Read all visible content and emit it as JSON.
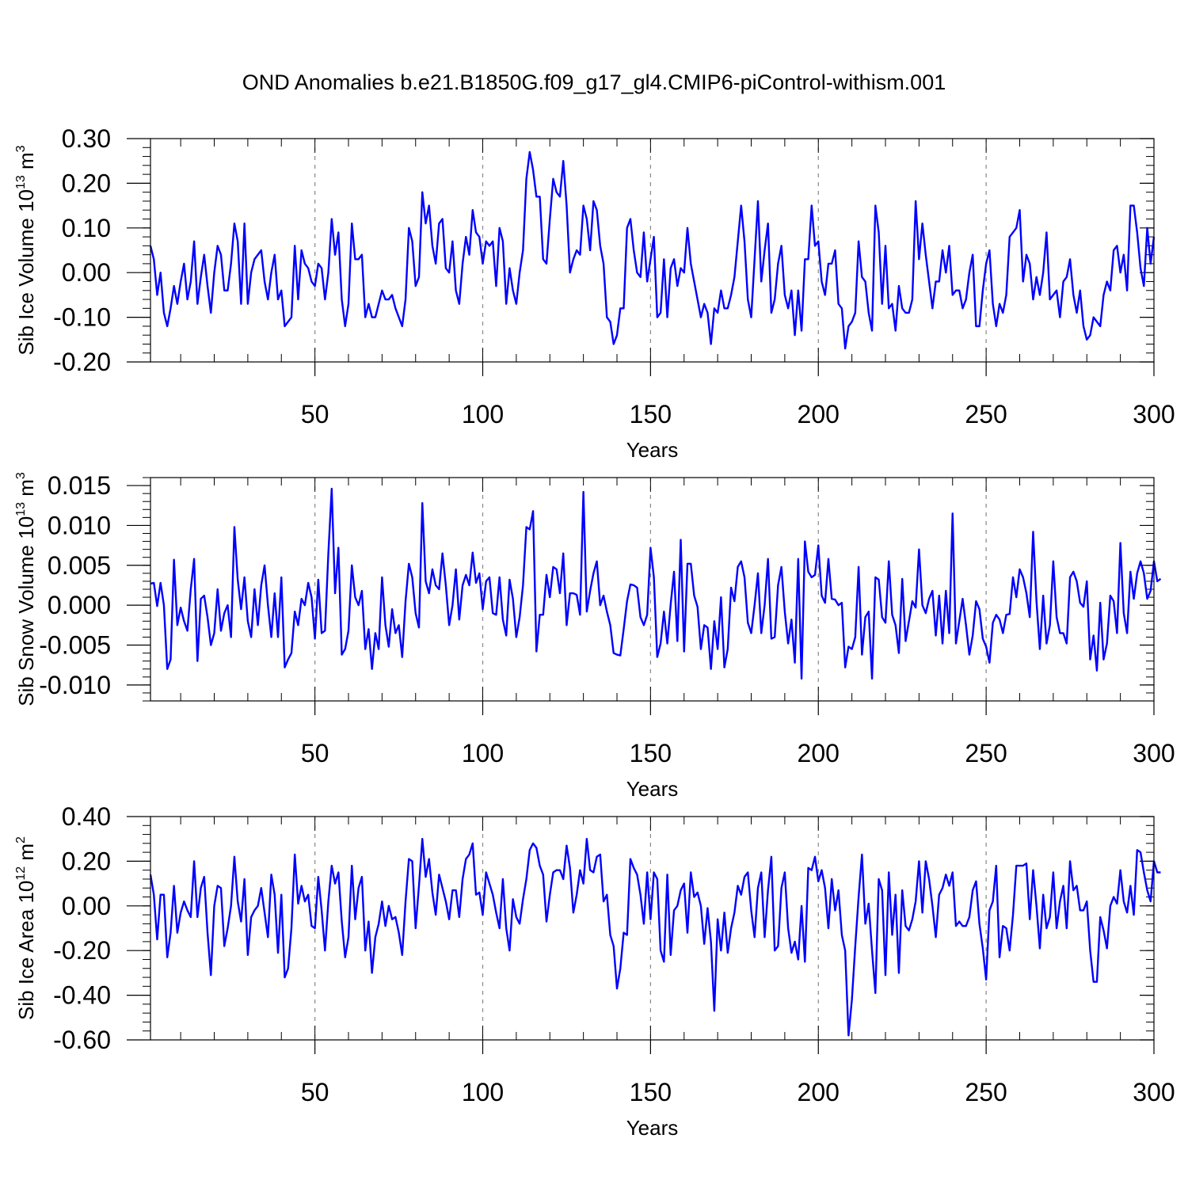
{
  "figure": {
    "title": "OND Anomalies b.e21.B1850G.f09_g17_gl4.CMIP6-piControl-withism.001",
    "line_color": "#0000ff",
    "grid_color": "#888888"
  },
  "chart_data": [
    {
      "type": "line",
      "ylabel_main": "Sib Ice Volume 10",
      "ylabel_sup": "13",
      "ylabel_unit": " m",
      "ylabel_unit_sup": "3",
      "xlabel": "Years",
      "xlim": [
        1,
        300
      ],
      "ylim": [
        -0.2,
        0.3
      ],
      "yticks": [
        -0.2,
        -0.1,
        0.0,
        0.1,
        0.2,
        0.3
      ],
      "ytick_labels": [
        "-0.20",
        "-0.10",
        "0.00",
        "0.10",
        "0.20",
        "0.30"
      ],
      "yminor_step": 0.02,
      "xticks": [
        50,
        100,
        150,
        200,
        250,
        300
      ],
      "xtick_labels": [
        "50",
        "100",
        "150",
        "200",
        "250",
        "300"
      ],
      "grid": true,
      "x_start": 1,
      "values": [
        0.06,
        0.03,
        -0.05,
        0.0,
        -0.09,
        -0.12,
        -0.08,
        -0.03,
        -0.07,
        -0.02,
        0.02,
        -0.06,
        -0.02,
        0.07,
        -0.07,
        -0.01,
        0.04,
        -0.03,
        -0.09,
        0.0,
        0.06,
        0.04,
        -0.04,
        -0.04,
        0.02,
        0.11,
        0.07,
        -0.07,
        0.11,
        -0.07,
        0.0,
        0.03,
        0.04,
        0.05,
        -0.02,
        -0.06,
        0.0,
        0.04,
        -0.06,
        -0.04,
        -0.12,
        -0.11,
        -0.1,
        0.06,
        -0.06,
        0.05,
        0.02,
        0.01,
        -0.02,
        -0.03,
        0.02,
        0.01,
        -0.06,
        0.0,
        0.12,
        0.04,
        0.09,
        -0.06,
        -0.12,
        -0.07,
        0.11,
        0.03,
        0.03,
        0.04,
        -0.1,
        -0.07,
        -0.1,
        -0.1,
        -0.07,
        -0.04,
        -0.06,
        -0.06,
        -0.05,
        -0.08,
        -0.1,
        -0.12,
        -0.06,
        0.1,
        0.07,
        -0.03,
        -0.01,
        0.18,
        0.11,
        0.15,
        0.06,
        0.02,
        0.11,
        0.12,
        0.01,
        0.0,
        0.07,
        -0.04,
        -0.07,
        0.02,
        0.08,
        0.04,
        0.14,
        0.09,
        0.08,
        0.02,
        0.07,
        0.06,
        0.07,
        -0.03,
        0.1,
        0.07,
        -0.07,
        0.01,
        -0.04,
        -0.07,
        0.0,
        0.05,
        0.21,
        0.27,
        0.23,
        0.17,
        0.17,
        0.03,
        0.02,
        0.12,
        0.21,
        0.18,
        0.17,
        0.25,
        0.15,
        0.0,
        0.03,
        0.05,
        0.04,
        0.15,
        0.12,
        0.05,
        0.16,
        0.14,
        0.06,
        0.02,
        -0.1,
        -0.11,
        -0.16,
        -0.14,
        -0.08,
        -0.08,
        0.1,
        0.12,
        0.05,
        0.0,
        -0.01,
        0.09,
        -0.02,
        0.03,
        0.08,
        -0.1,
        -0.09,
        0.03,
        -0.1,
        0.01,
        0.03,
        -0.03,
        0.01,
        0.0,
        0.1,
        0.02,
        -0.02,
        -0.06,
        -0.1,
        -0.07,
        -0.09,
        -0.16,
        -0.08,
        -0.09,
        -0.04,
        -0.08,
        -0.08,
        -0.05,
        -0.01,
        0.07,
        0.15,
        0.07,
        -0.06,
        -0.1,
        0.03,
        0.16,
        -0.02,
        0.05,
        0.11,
        -0.09,
        -0.06,
        0.02,
        0.06,
        -0.05,
        -0.08,
        -0.04,
        -0.14,
        -0.04,
        -0.13,
        0.03,
        0.03,
        0.15,
        0.06,
        0.07,
        -0.02,
        -0.05,
        0.02,
        0.02,
        0.05,
        -0.07,
        -0.08,
        -0.17,
        -0.12,
        -0.11,
        -0.09,
        0.07,
        -0.01,
        -0.02,
        -0.09,
        -0.13,
        0.15,
        0.09,
        -0.07,
        0.06,
        -0.08,
        -0.07,
        -0.13,
        -0.03,
        -0.08,
        -0.09,
        -0.09,
        -0.06,
        0.16,
        0.03,
        0.11,
        0.04,
        -0.02,
        -0.08,
        -0.02,
        -0.02,
        0.05,
        0.0,
        0.06,
        -0.05,
        -0.04,
        -0.04,
        -0.08,
        -0.06,
        0.0,
        0.04,
        -0.12,
        -0.12,
        -0.04,
        0.02,
        0.05,
        -0.07,
        -0.12,
        -0.07,
        -0.09,
        -0.05,
        0.08,
        0.09,
        0.1,
        0.14,
        -0.02,
        0.04,
        0.02,
        -0.06,
        -0.01,
        -0.05,
        0.0,
        0.09,
        -0.06,
        -0.05,
        -0.04,
        -0.1,
        -0.02,
        -0.01,
        0.03,
        -0.05,
        -0.09,
        -0.04,
        -0.12,
        -0.15,
        -0.14,
        -0.1,
        -0.11,
        -0.12,
        -0.05,
        -0.02,
        -0.04,
        0.05,
        0.06,
        0.0,
        0.04,
        -0.04,
        0.15,
        0.15,
        0.09,
        0.01,
        -0.03,
        0.1,
        0.02,
        0.08
      ]
    },
    {
      "type": "line",
      "ylabel_main": "Sib Snow Volume 10",
      "ylabel_sup": "13",
      "ylabel_unit": " m",
      "ylabel_unit_sup": "3",
      "xlabel": "Years",
      "xlim": [
        1,
        300
      ],
      "ylim": [
        -0.012,
        0.016
      ],
      "yticks": [
        -0.01,
        -0.005,
        0.0,
        0.005,
        0.01,
        0.015
      ],
      "ytick_labels": [
        "-0.010",
        "-0.005",
        "0.000",
        "0.005",
        "0.010",
        "0.015"
      ],
      "yminor_step": 0.001,
      "xticks": [
        50,
        100,
        150,
        200,
        250,
        300
      ],
      "xtick_labels": [
        "50",
        "100",
        "150",
        "200",
        "250",
        "300"
      ],
      "grid": true,
      "x_start": 1,
      "values": [
        0.0027,
        0.0028,
        -0.0001,
        0.0028,
        0.0,
        -0.008,
        -0.0068,
        0.0057,
        -0.0025,
        -0.0003,
        -0.002,
        -0.0032,
        0.002,
        0.0058,
        -0.007,
        0.0008,
        0.0012,
        -0.0015,
        -0.005,
        -0.0035,
        0.002,
        -0.0032,
        -0.001,
        0.0,
        -0.004,
        0.0098,
        0.0032,
        -0.0005,
        0.0035,
        -0.002,
        -0.004,
        0.002,
        -0.0025,
        0.0025,
        0.005,
        0.0,
        -0.004,
        0.0015,
        -0.004,
        0.0035,
        -0.0078,
        -0.0068,
        -0.006,
        -0.0008,
        -0.0025,
        0.0008,
        0.0,
        0.0028,
        0.001,
        -0.0042,
        0.0032,
        -0.0035,
        -0.0032,
        0.0065,
        0.0146,
        0.0015,
        0.0072,
        -0.0062,
        -0.0055,
        -0.0032,
        0.005,
        0.001,
        0.0,
        0.0018,
        -0.0055,
        -0.003,
        -0.008,
        -0.0035,
        -0.0055,
        0.0035,
        -0.0025,
        -0.0052,
        -0.0005,
        -0.0035,
        -0.0025,
        -0.0065,
        0.0005,
        0.0052,
        0.0035,
        -0.001,
        -0.0028,
        0.0128,
        0.003,
        0.0015,
        0.0045,
        0.0025,
        0.002,
        0.0065,
        0.0025,
        -0.0025,
        0.0,
        0.0045,
        -0.0018,
        0.0025,
        0.0038,
        0.0025,
        0.0066,
        0.0028,
        0.004,
        -0.0005,
        0.003,
        0.0035,
        -0.001,
        -0.0012,
        0.0035,
        -0.0018,
        -0.0038,
        0.0032,
        0.0008,
        -0.004,
        -0.0015,
        0.0025,
        0.0098,
        0.0095,
        0.0118,
        -0.0058,
        -0.0012,
        -0.0012,
        0.0038,
        0.001,
        0.0048,
        0.0045,
        0.0015,
        0.0065,
        -0.0025,
        0.0015,
        0.0015,
        0.0013,
        -0.0012,
        0.0142,
        -0.0008,
        0.0018,
        0.004,
        0.0055,
        0.0,
        0.0012,
        -0.0008,
        -0.0025,
        -0.006,
        -0.0062,
        -0.0063,
        -0.003,
        0.0005,
        0.0026,
        0.0025,
        0.0022,
        -0.0015,
        -0.0025,
        -0.0012,
        0.0072,
        0.0035,
        -0.0065,
        -0.0048,
        -0.0008,
        -0.0048,
        0.0001,
        0.0042,
        -0.0045,
        0.0082,
        -0.0058,
        0.0052,
        0.0052,
        0.0012,
        -0.0002,
        -0.0055,
        -0.0025,
        -0.0028,
        -0.008,
        -0.002,
        -0.0055,
        0.001,
        -0.0078,
        -0.0055,
        0.0022,
        0.0005,
        0.0048,
        0.0055,
        0.0035,
        -0.0022,
        -0.0035,
        0.0,
        0.004,
        -0.0035,
        0.0,
        0.0058,
        -0.0042,
        -0.004,
        0.0025,
        0.0048,
        -0.0008,
        -0.0048,
        -0.0018,
        -0.0072,
        0.0058,
        -0.0092,
        0.008,
        0.0042,
        0.0035,
        0.0038,
        0.0075,
        0.0012,
        0.0003,
        0.0058,
        0.0008,
        0.0007,
        0.0,
        0.0003,
        -0.0078,
        -0.0052,
        -0.0055,
        -0.004,
        0.0048,
        -0.0062,
        -0.0015,
        -0.0008,
        -0.0092,
        0.0035,
        0.0032,
        -0.0015,
        -0.0022,
        0.0055,
        -0.0012,
        -0.0025,
        -0.006,
        0.0033,
        -0.0045,
        -0.002,
        0.0005,
        -0.0003,
        0.007,
        0.0,
        -0.001,
        0.0008,
        0.0018,
        -0.0038,
        0.0012,
        -0.0048,
        0.0018,
        -0.0035,
        0.0115,
        -0.0048,
        -0.002,
        0.0008,
        -0.0025,
        -0.0062,
        -0.0038,
        0.0005,
        -0.0005,
        -0.0042,
        -0.0052,
        -0.0072,
        -0.0022,
        -0.0012,
        -0.0018,
        -0.0035,
        -0.0012,
        -0.0011,
        0.0035,
        0.001,
        0.0045,
        0.0035,
        0.0015,
        -0.0015,
        0.0092,
        0.0005,
        -0.0055,
        0.0012,
        -0.0048,
        -0.0025,
        0.0055,
        -0.0015,
        -0.0035,
        -0.0035,
        -0.0048,
        0.0035,
        0.0042,
        0.003,
        0.0003,
        -0.0002,
        0.003,
        -0.0068,
        -0.0038,
        -0.0082,
        0.0003,
        -0.0068,
        -0.0048,
        0.0012,
        0.0005,
        -0.0035,
        0.0078,
        -0.001,
        -0.0035,
        0.0042,
        0.0008,
        0.004,
        0.0055,
        0.004,
        0.0008,
        0.0018,
        0.0055,
        0.003,
        0.0033
      ]
    },
    {
      "type": "line",
      "ylabel_main": "Sib Ice Area 10",
      "ylabel_sup": "12",
      "ylabel_unit": " m",
      "ylabel_unit_sup": "2",
      "xlabel": "Years",
      "xlim": [
        1,
        300
      ],
      "ylim": [
        -0.6,
        0.4
      ],
      "yticks": [
        -0.6,
        -0.4,
        -0.2,
        0.0,
        0.2,
        0.4
      ],
      "ytick_labels": [
        "-0.60",
        "-0.40",
        "-0.20",
        "0.00",
        "0.20",
        "0.40"
      ],
      "yminor_step": 0.04,
      "xticks": [
        50,
        100,
        150,
        200,
        250,
        300
      ],
      "xtick_labels": [
        "50",
        "100",
        "150",
        "200",
        "250",
        "300"
      ],
      "grid": true,
      "x_start": 1,
      "values": [
        0.14,
        0.05,
        -0.15,
        0.05,
        0.05,
        -0.23,
        -0.12,
        0.09,
        -0.12,
        -0.03,
        0.02,
        -0.02,
        -0.05,
        0.2,
        -0.05,
        0.08,
        0.13,
        -0.12,
        -0.31,
        0.0,
        0.09,
        0.08,
        -0.18,
        -0.1,
        0.0,
        0.22,
        0.02,
        -0.07,
        0.12,
        -0.22,
        -0.05,
        -0.02,
        0.0,
        0.08,
        -0.03,
        -0.14,
        0.14,
        0.05,
        -0.21,
        0.05,
        -0.32,
        -0.28,
        -0.1,
        0.23,
        0.01,
        0.09,
        0.02,
        0.05,
        -0.09,
        -0.1,
        0.13,
        -0.02,
        -0.2,
        0.02,
        0.18,
        0.1,
        0.15,
        -0.07,
        -0.23,
        -0.14,
        0.18,
        -0.06,
        0.08,
        0.13,
        -0.2,
        -0.07,
        -0.3,
        -0.14,
        -0.08,
        0.02,
        -0.09,
        0.0,
        -0.06,
        -0.05,
        -0.12,
        -0.22,
        0.02,
        0.21,
        0.2,
        -0.1,
        0.09,
        0.3,
        0.13,
        0.21,
        0.06,
        -0.04,
        0.14,
        0.08,
        0.02,
        -0.06,
        0.07,
        0.07,
        -0.05,
        0.12,
        0.21,
        0.23,
        0.28,
        0.05,
        0.06,
        -0.04,
        0.15,
        0.1,
        0.05,
        -0.03,
        -0.1,
        0.12,
        -0.1,
        -0.2,
        0.03,
        -0.05,
        -0.08,
        0.03,
        0.12,
        0.25,
        0.28,
        0.26,
        0.18,
        0.14,
        -0.07,
        0.05,
        0.15,
        0.16,
        0.16,
        0.12,
        0.27,
        0.17,
        -0.03,
        0.05,
        0.16,
        0.1,
        0.3,
        0.16,
        0.15,
        0.22,
        0.23,
        0.02,
        0.05,
        -0.13,
        -0.18,
        -0.37,
        -0.28,
        -0.12,
        -0.13,
        0.21,
        0.17,
        0.14,
        0.05,
        -0.08,
        0.15,
        -0.06,
        0.15,
        0.12,
        -0.2,
        -0.25,
        0.14,
        -0.22,
        -0.02,
        0.0,
        0.07,
        0.1,
        -0.12,
        0.15,
        0.04,
        0.06,
        0.0,
        -0.17,
        -0.01,
        -0.16,
        -0.47,
        -0.06,
        -0.2,
        -0.03,
        -0.21,
        -0.1,
        -0.03,
        0.09,
        0.05,
        0.13,
        0.15,
        -0.02,
        -0.14,
        0.08,
        0.15,
        -0.14,
        0.07,
        0.22,
        -0.2,
        -0.18,
        0.08,
        0.15,
        -0.1,
        -0.21,
        -0.16,
        -0.24,
        0.0,
        -0.25,
        0.17,
        0.16,
        0.22,
        0.11,
        0.16,
        0.08,
        -0.1,
        0.12,
        -0.02,
        0.07,
        -0.13,
        -0.2,
        -0.58,
        -0.42,
        -0.18,
        0.04,
        0.23,
        -0.08,
        0.01,
        -0.2,
        -0.39,
        0.12,
        0.07,
        -0.31,
        0.15,
        -0.13,
        0.05,
        -0.3,
        0.07,
        -0.09,
        -0.11,
        -0.06,
        0.02,
        0.2,
        -0.03,
        0.2,
        0.12,
        0.0,
        -0.14,
        0.05,
        0.08,
        0.14,
        0.09,
        0.15,
        -0.09,
        -0.07,
        -0.09,
        -0.09,
        -0.05,
        0.07,
        0.11,
        -0.08,
        -0.19,
        -0.33,
        -0.02,
        0.02,
        0.18,
        -0.23,
        -0.09,
        -0.1,
        -0.2,
        -0.04,
        0.18,
        0.18,
        0.18,
        0.19,
        -0.06,
        0.16,
        0.0,
        -0.19,
        0.05,
        -0.1,
        -0.05,
        0.15,
        -0.1,
        0.02,
        0.09,
        -0.1,
        0.2,
        0.07,
        0.09,
        -0.02,
        -0.02,
        0.02,
        -0.2,
        -0.34,
        -0.34,
        -0.05,
        -0.11,
        -0.19,
        0.0,
        0.04,
        0.01,
        0.16,
        0.02,
        -0.03,
        0.09,
        -0.04,
        0.25,
        0.24,
        0.15,
        0.07,
        0.02,
        0.2,
        0.15,
        0.15
      ]
    }
  ]
}
